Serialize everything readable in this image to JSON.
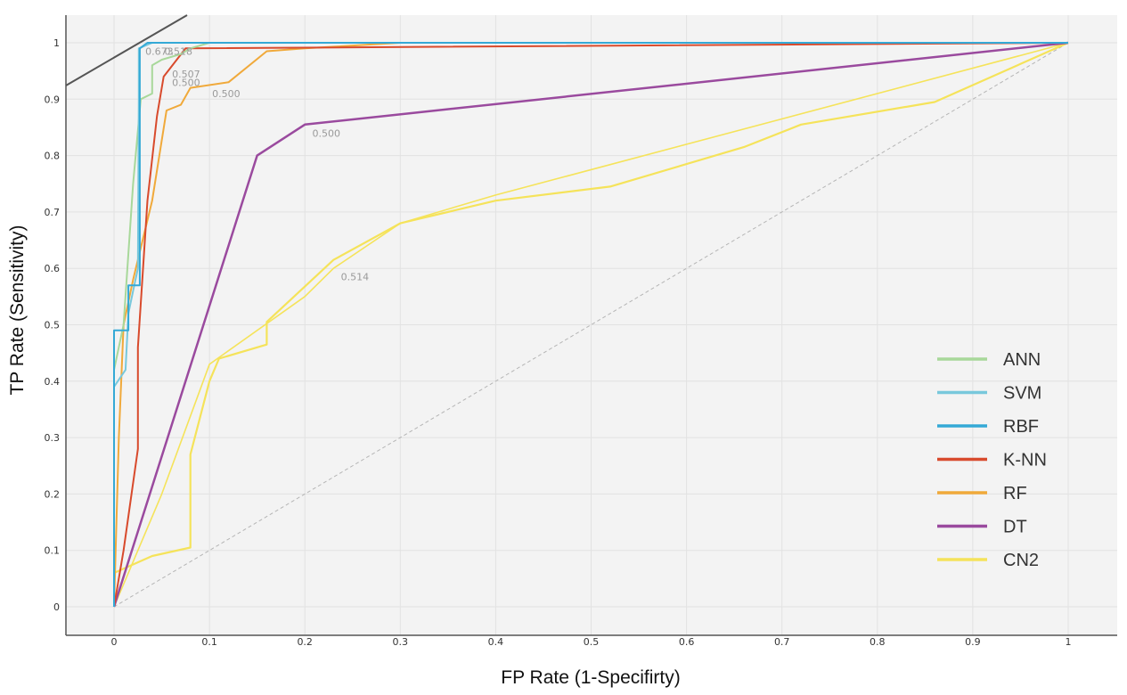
{
  "chart_data": {
    "type": "line",
    "title": "",
    "xlabel": "FP Rate (1-Specifirty)",
    "ylabel": "TP Rate (Sensitivity)",
    "xlim": [
      0,
      1
    ],
    "ylim": [
      0,
      1
    ],
    "x_ticks": [
      "0",
      "0.1",
      "0.2",
      "0.3",
      "0.4",
      "0.5",
      "0.6",
      "0.7",
      "0.8",
      "0.9",
      "1"
    ],
    "y_ticks": [
      "0",
      "0.1",
      "0.2",
      "0.3",
      "0.4",
      "0.5",
      "0.6",
      "0.7",
      "0.8",
      "0.9",
      "1"
    ],
    "grid": true,
    "legend_position": "bottom-right",
    "series": [
      {
        "name": "ANN",
        "color": "#a8d89a",
        "points": [
          [
            0,
            0
          ],
          [
            0,
            0.42
          ],
          [
            0.01,
            0.5
          ],
          [
            0.02,
            0.75
          ],
          [
            0.028,
            0.9
          ],
          [
            0.04,
            0.91
          ],
          [
            0.04,
            0.96
          ],
          [
            0.05,
            0.97
          ],
          [
            0.07,
            0.98
          ],
          [
            0.08,
            0.99
          ],
          [
            0.1,
            1
          ],
          [
            1,
            1
          ]
        ]
      },
      {
        "name": "SVM",
        "color": "#78c8dc",
        "points": [
          [
            0,
            0
          ],
          [
            0,
            0.39
          ],
          [
            0.012,
            0.42
          ],
          [
            0.015,
            0.52
          ],
          [
            0.02,
            0.56
          ],
          [
            0.025,
            0.6
          ],
          [
            0.026,
            0.9
          ],
          [
            0.026,
            0.99
          ],
          [
            0.04,
            1
          ],
          [
            1,
            1
          ]
        ]
      },
      {
        "name": "RBF",
        "color": "#34a9d6",
        "points": [
          [
            0,
            0
          ],
          [
            0,
            0.49
          ],
          [
            0.015,
            0.49
          ],
          [
            0.015,
            0.57
          ],
          [
            0.027,
            0.57
          ],
          [
            0.027,
            0.99
          ],
          [
            0.035,
            1
          ],
          [
            1,
            1
          ]
        ]
      },
      {
        "name": "K-NN",
        "color": "#d84a2c",
        "points": [
          [
            0,
            0
          ],
          [
            0.01,
            0.1
          ],
          [
            0.025,
            0.28
          ],
          [
            0.025,
            0.46
          ],
          [
            0.035,
            0.72
          ],
          [
            0.045,
            0.87
          ],
          [
            0.052,
            0.94
          ],
          [
            0.075,
            0.99
          ],
          [
            1,
            1
          ]
        ]
      },
      {
        "name": "RF",
        "color": "#f0a93a",
        "points": [
          [
            0,
            0
          ],
          [
            0.005,
            0.3
          ],
          [
            0.01,
            0.5
          ],
          [
            0.02,
            0.58
          ],
          [
            0.04,
            0.72
          ],
          [
            0.055,
            0.88
          ],
          [
            0.07,
            0.89
          ],
          [
            0.08,
            0.92
          ],
          [
            0.12,
            0.93
          ],
          [
            0.16,
            0.985
          ],
          [
            0.2,
            0.99
          ],
          [
            0.3,
            1
          ],
          [
            1,
            1
          ]
        ]
      },
      {
        "name": "DT",
        "color": "#9a4a9e",
        "points": [
          [
            0,
            0
          ],
          [
            0.15,
            0.8
          ],
          [
            0.2,
            0.855
          ],
          [
            1,
            1
          ]
        ]
      },
      {
        "name": "CN2",
        "color": "#f5e35a",
        "points": [
          [
            0,
            0.06
          ],
          [
            0.04,
            0.09
          ],
          [
            0.08,
            0.105
          ],
          [
            0.08,
            0.27
          ],
          [
            0.1,
            0.4
          ],
          [
            0.11,
            0.44
          ],
          [
            0.16,
            0.465
          ],
          [
            0.16,
            0.505
          ],
          [
            0.23,
            0.615
          ],
          [
            0.3,
            0.68
          ],
          [
            0.4,
            0.72
          ],
          [
            0.52,
            0.745
          ],
          [
            0.66,
            0.815
          ],
          [
            0.72,
            0.855
          ],
          [
            0.86,
            0.895
          ],
          [
            1,
            1
          ]
        ],
        "points_b": [
          [
            0,
            0
          ],
          [
            0.05,
            0.2
          ],
          [
            0.1,
            0.43
          ],
          [
            0.2,
            0.55
          ],
          [
            0.23,
            0.6
          ],
          [
            0.3,
            0.68
          ],
          [
            0.4,
            0.73
          ],
          [
            1,
            1
          ]
        ]
      }
    ],
    "diagonal": {
      "from": [
        0,
        0
      ],
      "to": [
        1,
        1
      ],
      "style": "dashed",
      "color": "#bbbbbb"
    },
    "threshold_labels": [
      {
        "text": "0.673",
        "x": 0.03,
        "y": 0.985
      },
      {
        "text": "0.518",
        "x": 0.05,
        "y": 0.985
      },
      {
        "text": "0.507",
        "x": 0.058,
        "y": 0.945
      },
      {
        "text": "0.500",
        "x": 0.058,
        "y": 0.93
      },
      {
        "text": "0.500",
        "x": 0.1,
        "y": 0.91
      },
      {
        "text": "0.500",
        "x": 0.205,
        "y": 0.84
      },
      {
        "text": "0.514",
        "x": 0.235,
        "y": 0.585
      }
    ]
  }
}
